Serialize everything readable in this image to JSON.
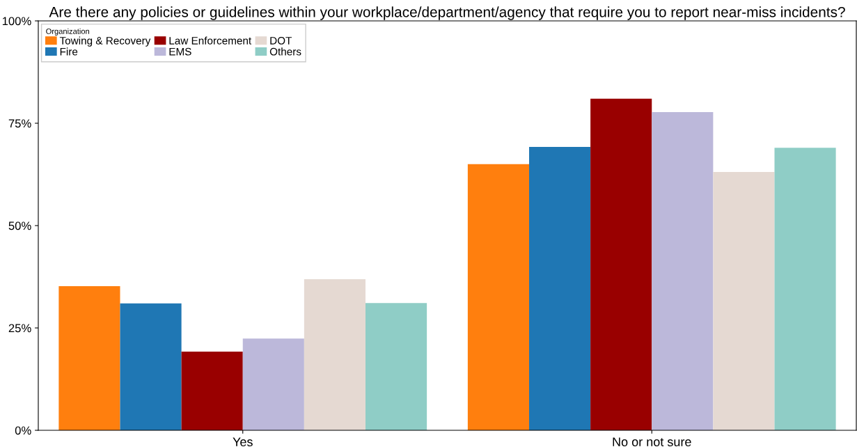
{
  "chart_data": {
    "type": "bar",
    "title": "Are there any policies or guidelines within your workplace/department/agency that require you to report near-miss incidents?",
    "categories": [
      "Yes",
      "No or not sure"
    ],
    "series": [
      {
        "name": "Towing & Recovery",
        "color": "#ff7f0e",
        "values": [
          35.2,
          65.0
        ]
      },
      {
        "name": "Fire",
        "color": "#1f77b4",
        "values": [
          31.0,
          69.2
        ]
      },
      {
        "name": "Law Enforcement",
        "color": "#990000",
        "values": [
          19.2,
          81.0
        ]
      },
      {
        "name": "EMS",
        "color": "#bcb8da",
        "values": [
          22.4,
          77.7
        ]
      },
      {
        "name": "DOT",
        "color": "#e5d9d2",
        "values": [
          36.9,
          63.1
        ]
      },
      {
        "name": "Others",
        "color": "#8fcdc6",
        "values": [
          31.1,
          69.0
        ]
      }
    ],
    "legend_title": "Organization",
    "legend": "top left",
    "grid": false,
    "ylim": [
      0,
      100
    ],
    "yticks": [
      {
        "value": 0,
        "label": "0%"
      },
      {
        "value": 25,
        "label": "25%"
      },
      {
        "value": 50,
        "label": "50%"
      },
      {
        "value": 75,
        "label": "75%"
      },
      {
        "value": 100,
        "label": "100%"
      }
    ]
  }
}
